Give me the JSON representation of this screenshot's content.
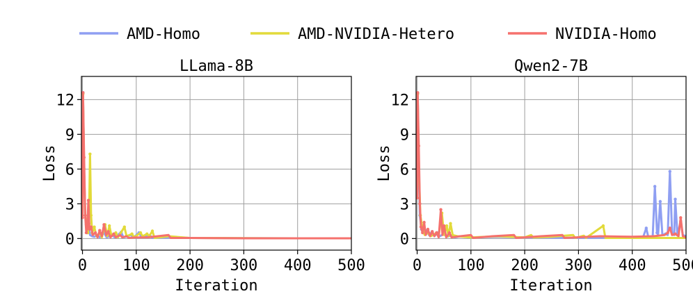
{
  "legend": [
    {
      "name": "AMD-Homo",
      "color": "#8f9ff2"
    },
    {
      "name": "AMD-NVIDIA-Hetero",
      "color": "#e2da3a"
    },
    {
      "name": "NVIDIA-Homo",
      "color": "#f5716d"
    }
  ],
  "chart_data": [
    {
      "type": "line",
      "title": "LLama-8B",
      "xlabel": "Iteration",
      "ylabel": "Loss",
      "xlim": [
        -2,
        500
      ],
      "ylim": [
        -1,
        14
      ],
      "xticks": [
        0,
        100,
        200,
        300,
        400,
        500
      ],
      "xtick_labels": [
        "0",
        "100",
        "200",
        "300",
        "400",
        "500"
      ],
      "yticks": [
        0,
        3,
        6,
        9,
        12
      ],
      "ytick_labels": [
        "0",
        "3",
        "6",
        "9",
        "12"
      ],
      "grid": true,
      "legend_position": "top-center",
      "series": [
        {
          "name": "AMD-Homo",
          "color": "#8f9ff2",
          "points": [
            [
              1,
              12.6
            ],
            [
              3,
              6
            ],
            [
              5,
              2
            ],
            [
              7,
              1.2
            ],
            [
              9,
              0.5
            ],
            [
              12,
              0.9
            ],
            [
              14,
              0.3
            ],
            [
              18,
              0.2
            ],
            [
              22,
              0.15
            ],
            [
              28,
              0.3
            ],
            [
              32,
              0.1
            ],
            [
              40,
              0.5
            ],
            [
              45,
              0.1
            ],
            [
              55,
              0.3
            ],
            [
              60,
              0.1
            ],
            [
              72,
              0.55
            ],
            [
              76,
              0.1
            ],
            [
              90,
              0.3
            ],
            [
              95,
              0.1
            ],
            [
              105,
              0.5
            ],
            [
              110,
              0.1
            ],
            [
              125,
              0.3
            ],
            [
              130,
              0.05
            ],
            [
              160,
              0.1
            ],
            [
              200,
              0.05
            ],
            [
              300,
              0.03
            ],
            [
              400,
              0.02
            ],
            [
              500,
              0.02
            ]
          ]
        },
        {
          "name": "AMD-NVIDIA-Hetero",
          "color": "#e2da3a",
          "points": [
            [
              1,
              12.5
            ],
            [
              3,
              6
            ],
            [
              5,
              2
            ],
            [
              8,
              1
            ],
            [
              10,
              0.5
            ],
            [
              12,
              1.3
            ],
            [
              14,
              7.3
            ],
            [
              16,
              2
            ],
            [
              18,
              0.5
            ],
            [
              22,
              1
            ],
            [
              26,
              0.2
            ],
            [
              32,
              0.5
            ],
            [
              36,
              0.1
            ],
            [
              42,
              1.2
            ],
            [
              46,
              0.2
            ],
            [
              50,
              1.1
            ],
            [
              54,
              0.2
            ],
            [
              62,
              0.5
            ],
            [
              66,
              0.1
            ],
            [
              78,
              1
            ],
            [
              82,
              0.2
            ],
            [
              92,
              0.4
            ],
            [
              96,
              0.1
            ],
            [
              108,
              0.5
            ],
            [
              112,
              0.2
            ],
            [
              120,
              0.4
            ],
            [
              124,
              0.2
            ],
            [
              130,
              0.65
            ],
            [
              134,
              0.05
            ],
            [
              160,
              0.2
            ],
            [
              200,
              0.05
            ],
            [
              300,
              0.03
            ],
            [
              400,
              0.02
            ],
            [
              500,
              0.02
            ]
          ]
        },
        {
          "name": "NVIDIA-Homo",
          "color": "#f5716d",
          "points": [
            [
              0,
              1.8
            ],
            [
              1,
              12.6
            ],
            [
              3,
              7
            ],
            [
              5,
              2
            ],
            [
              7,
              0.5
            ],
            [
              9,
              1
            ],
            [
              11,
              3.3
            ],
            [
              13,
              0.8
            ],
            [
              16,
              1
            ],
            [
              19,
              0.3
            ],
            [
              24,
              0.5
            ],
            [
              28,
              0.1
            ],
            [
              32,
              0.7
            ],
            [
              36,
              0.2
            ],
            [
              40,
              1.2
            ],
            [
              44,
              0.3
            ],
            [
              48,
              0.6
            ],
            [
              52,
              0.1
            ],
            [
              58,
              0.4
            ],
            [
              62,
              0.1
            ],
            [
              70,
              0.3
            ],
            [
              74,
              0.1
            ],
            [
              82,
              0.2
            ],
            [
              86,
              0.05
            ],
            [
              100,
              0.1
            ],
            [
              120,
              0.1
            ],
            [
              140,
              0.2
            ],
            [
              160,
              0.3
            ],
            [
              164,
              0.05
            ],
            [
              200,
              0.05
            ],
            [
              300,
              0.02
            ],
            [
              400,
              0.02
            ],
            [
              500,
              0.02
            ]
          ]
        }
      ]
    },
    {
      "type": "line",
      "title": "Qwen2-7B",
      "xlabel": "Iteration",
      "ylabel": "Loss",
      "xlim": [
        -2,
        500
      ],
      "ylim": [
        -1,
        14
      ],
      "xticks": [
        0,
        100,
        200,
        300,
        400,
        500
      ],
      "xtick_labels": [
        "0",
        "100",
        "200",
        "300",
        "400",
        "500"
      ],
      "yticks": [
        0,
        3,
        6,
        9,
        12
      ],
      "ytick_labels": [
        "0",
        "3",
        "6",
        "9",
        "12"
      ],
      "grid": true,
      "series": [
        {
          "name": "AMD-Homo",
          "color": "#8f9ff2",
          "points": [
            [
              1,
              12.5
            ],
            [
              3,
              6
            ],
            [
              5,
              2
            ],
            [
              8,
              0.8
            ],
            [
              12,
              0.5
            ],
            [
              18,
              0.7
            ],
            [
              22,
              0.3
            ],
            [
              28,
              0.6
            ],
            [
              32,
              0.2
            ],
            [
              38,
              0.5
            ],
            [
              42,
              0.2
            ],
            [
              50,
              0.4
            ],
            [
              55,
              0.15
            ],
            [
              65,
              0.3
            ],
            [
              70,
              0.1
            ],
            [
              80,
              0.2
            ],
            [
              100,
              0.1
            ],
            [
              150,
              0.15
            ],
            [
              200,
              0.1
            ],
            [
              300,
              0.05
            ],
            [
              400,
              0.1
            ],
            [
              420,
              0.1
            ],
            [
              426,
              0.9
            ],
            [
              430,
              0.1
            ],
            [
              438,
              0.2
            ],
            [
              442,
              4.5
            ],
            [
              446,
              0.5
            ],
            [
              448,
              0.3
            ],
            [
              452,
              3.2
            ],
            [
              456,
              0.3
            ],
            [
              462,
              0.4
            ],
            [
              466,
              0.3
            ],
            [
              470,
              5.8
            ],
            [
              474,
              0.5
            ],
            [
              478,
              0.3
            ],
            [
              480,
              3.4
            ],
            [
              484,
              0.3
            ],
            [
              490,
              1.5
            ],
            [
              494,
              0.3
            ],
            [
              500,
              0.2
            ]
          ]
        },
        {
          "name": "AMD-NVIDIA-Hetero",
          "color": "#e2da3a",
          "points": [
            [
              1,
              12.5
            ],
            [
              3,
              6
            ],
            [
              6,
              2
            ],
            [
              10,
              0.8
            ],
            [
              14,
              0.3
            ],
            [
              20,
              0.5
            ],
            [
              25,
              0.2
            ],
            [
              30,
              0.3
            ],
            [
              36,
              0.5
            ],
            [
              40,
              0.2
            ],
            [
              46,
              2.2
            ],
            [
              50,
              0.3
            ],
            [
              55,
              1.1
            ],
            [
              58,
              0.2
            ],
            [
              62,
              1.3
            ],
            [
              66,
              0.3
            ],
            [
              75,
              0.2
            ],
            [
              100,
              0.1
            ],
            [
              150,
              0.2
            ],
            [
              200,
              0.1
            ],
            [
              212,
              0.3
            ],
            [
              216,
              0.1
            ],
            [
              250,
              0.15
            ],
            [
              290,
              0.3
            ],
            [
              294,
              0.05
            ],
            [
              310,
              0.25
            ],
            [
              314,
              0.05
            ],
            [
              346,
              1.1
            ],
            [
              350,
              0.05
            ],
            [
              400,
              0.05
            ],
            [
              500,
              0.05
            ]
          ]
        },
        {
          "name": "NVIDIA-Homo",
          "color": "#f5716d",
          "points": [
            [
              0,
              3.5
            ],
            [
              1,
              12.6
            ],
            [
              3,
              8
            ],
            [
              5,
              3
            ],
            [
              7,
              1
            ],
            [
              10,
              0.5
            ],
            [
              13,
              1.4
            ],
            [
              16,
              0.3
            ],
            [
              20,
              0.8
            ],
            [
              24,
              0.2
            ],
            [
              28,
              0.6
            ],
            [
              32,
              0.2
            ],
            [
              36,
              0.5
            ],
            [
              40,
              0.1
            ],
            [
              44,
              2.5
            ],
            [
              47,
              0.3
            ],
            [
              50,
              1.1
            ],
            [
              54,
              0.1
            ],
            [
              60,
              0.5
            ],
            [
              64,
              0.1
            ],
            [
              80,
              0.2
            ],
            [
              100,
              0.3
            ],
            [
              104,
              0.05
            ],
            [
              140,
              0.2
            ],
            [
              180,
              0.3
            ],
            [
              184,
              0.05
            ],
            [
              230,
              0.2
            ],
            [
              270,
              0.3
            ],
            [
              274,
              0.05
            ],
            [
              340,
              0.2
            ],
            [
              400,
              0.15
            ],
            [
              440,
              0.2
            ],
            [
              460,
              0.3
            ],
            [
              466,
              0.5
            ],
            [
              470,
              0.9
            ],
            [
              474,
              0.3
            ],
            [
              480,
              0.4
            ],
            [
              486,
              0.2
            ],
            [
              490,
              1.8
            ],
            [
              494,
              0.2
            ],
            [
              500,
              0.1
            ]
          ]
        }
      ]
    }
  ]
}
